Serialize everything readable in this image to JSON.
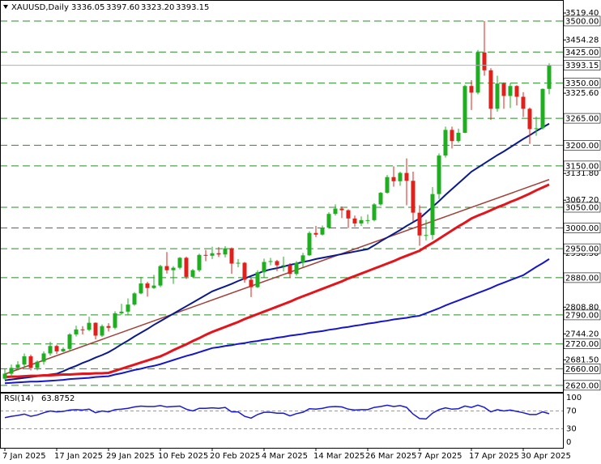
{
  "chart_data": {
    "type": "candlestick",
    "title": "XAUUSD,Daily",
    "ohlc_labels": [
      "3336.05",
      "3397.60",
      "3323.20",
      "3393.15"
    ],
    "categories": [
      "7 Jan 2025",
      null,
      null,
      null,
      null,
      null,
      null,
      null,
      "17 Jan 2025",
      null,
      null,
      null,
      null,
      null,
      null,
      null,
      "29 Jan 2025",
      null,
      null,
      null,
      null,
      null,
      null,
      null,
      "10 Feb 2025",
      null,
      null,
      null,
      null,
      null,
      null,
      null,
      "20 Feb 2025",
      null,
      null,
      null,
      null,
      null,
      null,
      null,
      "4 Mar 2025",
      null,
      null,
      null,
      null,
      null,
      null,
      null,
      "14 Mar 2025",
      null,
      null,
      null,
      null,
      null,
      null,
      null,
      "26 Mar 2025",
      null,
      null,
      null,
      null,
      null,
      null,
      null,
      "7 Apr 2025",
      null,
      null,
      null,
      null,
      null,
      null,
      null,
      "17 Apr 2025",
      null,
      null,
      null,
      null,
      null,
      null,
      null,
      "30 Apr 2025",
      null,
      null,
      null,
      null
    ],
    "open": [
      2636,
      2648,
      2662,
      2670,
      2690,
      2662,
      2677,
      2697,
      2715,
      2702,
      2708,
      2743,
      2755,
      2754,
      2771,
      2740,
      2763,
      2759,
      2794,
      2798,
      2815,
      2842,
      2866,
      2855,
      2861,
      2908,
      2898,
      2904,
      2928,
      2882,
      2898,
      2935,
      2933,
      2939,
      2936,
      2951,
      2914,
      2916,
      2875,
      2857,
      2893,
      2918,
      2920,
      2910,
      2910,
      2889,
      2916,
      2934,
      2988,
      2984,
      3001,
      3034,
      3047,
      3043,
      3023,
      3011,
      3019,
      3019,
      3057,
      3085,
      3123,
      3113,
      3133,
      3114,
      3037,
      2982,
      2983,
      3082,
      3175,
      3237,
      3210,
      3230,
      3343,
      3327,
      3424,
      3381,
      3288,
      3349,
      3319,
      3343,
      3317,
      3288,
      3239,
      3241,
      3336.05
    ],
    "high": [
      2660,
      2670,
      2678,
      2697,
      2694,
      2680,
      2702,
      2725,
      2718,
      2712,
      2746,
      2764,
      2763,
      2786,
      2772,
      2767,
      2770,
      2799,
      2817,
      2830,
      2845,
      2882,
      2870,
      2887,
      2911,
      2942,
      2908,
      2930,
      2931,
      2901,
      2938,
      2947,
      2955,
      2954,
      2956,
      2953,
      2925,
      2918,
      2880,
      2898,
      2926,
      2928,
      2923,
      2931,
      2915,
      2920,
      2940,
      2992,
      3005,
      3006,
      3038,
      3057,
      3052,
      3045,
      3030,
      3028,
      3033,
      3060,
      3087,
      3128,
      3149,
      3136,
      3168,
      3136,
      3055,
      3020,
      3099,
      3180,
      3245,
      3245,
      3240,
      3346,
      3357,
      3430,
      3500,
      3386,
      3368,
      3352,
      3350,
      3345,
      3328,
      3291,
      3269,
      3337,
      3397.6
    ],
    "low": [
      2633,
      2640,
      2656,
      2664,
      2656,
      2656,
      2670,
      2692,
      2696,
      2700,
      2703,
      2738,
      2743,
      2751,
      2731,
      2737,
      2750,
      2755,
      2790,
      2790,
      2812,
      2840,
      2834,
      2853,
      2857,
      2890,
      2865,
      2900,
      2877,
      2880,
      2894,
      2920,
      2925,
      2930,
      2929,
      2889,
      2905,
      2868,
      2833,
      2855,
      2880,
      2910,
      2896,
      2895,
      2880,
      2885,
      2905,
      2933,
      2978,
      2982,
      2998,
      3030,
      3024,
      3000,
      3003,
      3005,
      3010,
      3016,
      3054,
      3083,
      3100,
      3102,
      3055,
      3015,
      2957,
      2970,
      2972,
      3070,
      3170,
      3192,
      3206,
      3229,
      3285,
      3323,
      3368,
      3261,
      3281,
      3288,
      3290,
      3296,
      3268,
      3203,
      3223,
      3238,
      3323.2
    ],
    "close": [
      2648,
      2662,
      2670,
      2690,
      2662,
      2677,
      2697,
      2715,
      2702,
      2708,
      2743,
      2755,
      2754,
      2771,
      2740,
      2763,
      2759,
      2794,
      2798,
      2815,
      2842,
      2866,
      2855,
      2861,
      2908,
      2898,
      2904,
      2928,
      2882,
      2898,
      2935,
      2933,
      2939,
      2936,
      2951,
      2914,
      2916,
      2875,
      2857,
      2893,
      2918,
      2920,
      2910,
      2910,
      2889,
      2916,
      2934,
      2988,
      2984,
      3001,
      3034,
      3047,
      3043,
      3023,
      3011,
      3019,
      3019,
      3057,
      3085,
      3123,
      3113,
      3133,
      3114,
      3037,
      2982,
      2983,
      3082,
      3175,
      3237,
      3210,
      3230,
      3343,
      3327,
      3424,
      3381,
      3288,
      3349,
      3319,
      3343,
      3317,
      3288,
      3239,
      3241,
      3336,
      3393.15
    ],
    "up_color": "#1fae1f",
    "down_color": "#e0201b",
    "ylim": [
      2604,
      3541
    ],
    "yticks": [
      {
        "value": 3519.4,
        "label": "3519.40"
      },
      3454.28,
      {
        "value": 3325.6,
        "label": "3325.60"
      },
      {
        "value": 3131.8,
        "label": "3131.80"
      },
      {
        "value": 3067.2,
        "label": "3067.20"
      },
      {
        "value": 2938.3,
        "label": "2938.30"
      },
      {
        "value": 2808.8,
        "label": "2808.80"
      },
      {
        "value": 2744.2,
        "label": "2744.20"
      },
      {
        "value": 2681.5,
        "label": "2681.50"
      }
    ],
    "levels": [
      {
        "value": 3500,
        "label": "3500.00"
      },
      {
        "value": 3425,
        "label": "3425.00"
      },
      {
        "value": 3350,
        "label": "3350.00"
      },
      {
        "value": 3265,
        "label": "3265.00"
      },
      {
        "value": 3200,
        "label": "3200.00"
      },
      {
        "value": 3150,
        "label": "3150.00"
      },
      {
        "value": 3050,
        "label": "3050.00"
      },
      {
        "value": 3000,
        "label": "3000.00"
      },
      {
        "value": 2950,
        "label": "2950.00"
      },
      {
        "value": 2880,
        "label": "2880.00"
      },
      {
        "value": 2790,
        "label": "2790.00"
      },
      {
        "value": 2720,
        "label": "2720.00"
      },
      {
        "value": 2660,
        "label": "2660.00"
      },
      {
        "value": 2620,
        "label": "2620.00"
      }
    ],
    "level_color": "#2b8a2b",
    "series": [
      {
        "color": "#0a1a8c",
        "values": [
          2632,
          2634,
          2636,
          2638,
          2640,
          2642,
          2644,
          2646,
          2648,
          2654,
          2661,
          2667,
          2674,
          2680,
          2687,
          2693,
          2700,
          2709,
          2719,
          2728,
          2738,
          2747,
          2756,
          2766,
          2775,
          2784,
          2793,
          2802,
          2811,
          2820,
          2829,
          2838,
          2847,
          2853,
          2859,
          2865,
          2872,
          2878,
          2884,
          2890,
          2896,
          2900,
          2903,
          2907,
          2911,
          2914,
          2918,
          2921,
          2925,
          2928,
          2931,
          2934,
          2937,
          2940,
          2943,
          2946,
          2949,
          2958,
          2968,
          2977,
          2986,
          2995,
          3005,
          3014,
          3023,
          3037,
          3051,
          3065,
          3080,
          3094,
          3108,
          3122,
          3136,
          3146,
          3156,
          3166,
          3176,
          3185,
          3195,
          3205,
          3215,
          3224,
          3234,
          3243,
          3252
        ]
      },
      {
        "color": "#e3141b",
        "values": [
          2640,
          2641,
          2641,
          2642,
          2643,
          2643,
          2644,
          2644,
          2645,
          2646,
          2646,
          2647,
          2648,
          2648,
          2649,
          2649,
          2650,
          2655,
          2660,
          2665,
          2670,
          2675,
          2680,
          2685,
          2690,
          2697,
          2705,
          2712,
          2719,
          2727,
          2734,
          2742,
          2749,
          2755,
          2761,
          2767,
          2773,
          2780,
          2786,
          2792,
          2798,
          2804,
          2810,
          2816,
          2822,
          2829,
          2835,
          2841,
          2847,
          2853,
          2859,
          2865,
          2871,
          2878,
          2884,
          2890,
          2896,
          2902,
          2908,
          2914,
          2920,
          2927,
          2933,
          2939,
          2945,
          2955,
          2964,
          2974,
          2984,
          2994,
          3004,
          3013,
          3023,
          3030,
          3036,
          3043,
          3050,
          3056,
          3063,
          3069,
          3076,
          3083,
          3091,
          3098,
          3105
        ]
      },
      {
        "color": "#1616c8",
        "values": [
          2625,
          2626,
          2627,
          2628,
          2629,
          2629,
          2630,
          2631,
          2632,
          2633,
          2635,
          2636,
          2637,
          2638,
          2640,
          2641,
          2642,
          2646,
          2649,
          2653,
          2657,
          2660,
          2664,
          2667,
          2671,
          2676,
          2681,
          2686,
          2691,
          2695,
          2700,
          2705,
          2710,
          2712,
          2715,
          2717,
          2720,
          2722,
          2725,
          2727,
          2730,
          2732,
          2735,
          2737,
          2740,
          2742,
          2744,
          2747,
          2749,
          2751,
          2754,
          2756,
          2759,
          2761,
          2764,
          2766,
          2769,
          2771,
          2774,
          2776,
          2779,
          2781,
          2783,
          2786,
          2788,
          2794,
          2800,
          2806,
          2813,
          2819,
          2825,
          2831,
          2837,
          2843,
          2849,
          2855,
          2862,
          2868,
          2874,
          2880,
          2886,
          2896,
          2906,
          2915,
          2925
        ]
      }
    ],
    "trendline": {
      "color": "#a0403a",
      "values": [
        2647,
        3117
      ]
    },
    "rsi": {
      "title": "RSI(14)",
      "color": "#1a1ad0",
      "ylim": [
        0,
        100
      ],
      "yticks": [
        100,
        70,
        30,
        0
      ],
      "values": [
        55,
        58,
        60,
        63,
        58,
        61,
        66,
        70,
        68,
        69,
        72,
        73,
        72,
        74,
        66,
        70,
        68,
        73,
        74,
        76,
        79,
        81,
        80,
        80,
        82,
        79,
        80,
        81,
        74,
        70,
        76,
        76,
        77,
        76,
        78,
        68,
        68,
        58,
        54,
        62,
        67,
        67,
        65,
        65,
        59,
        64,
        67,
        75,
        74,
        76,
        79,
        80,
        79,
        74,
        72,
        73,
        73,
        78,
        80,
        83,
        80,
        82,
        78,
        63,
        53,
        52,
        65,
        73,
        77,
        74,
        75,
        81,
        78,
        83,
        78,
        68,
        73,
        70,
        72,
        69,
        66,
        62,
        62,
        68,
        63.8752
      ]
    }
  }
}
